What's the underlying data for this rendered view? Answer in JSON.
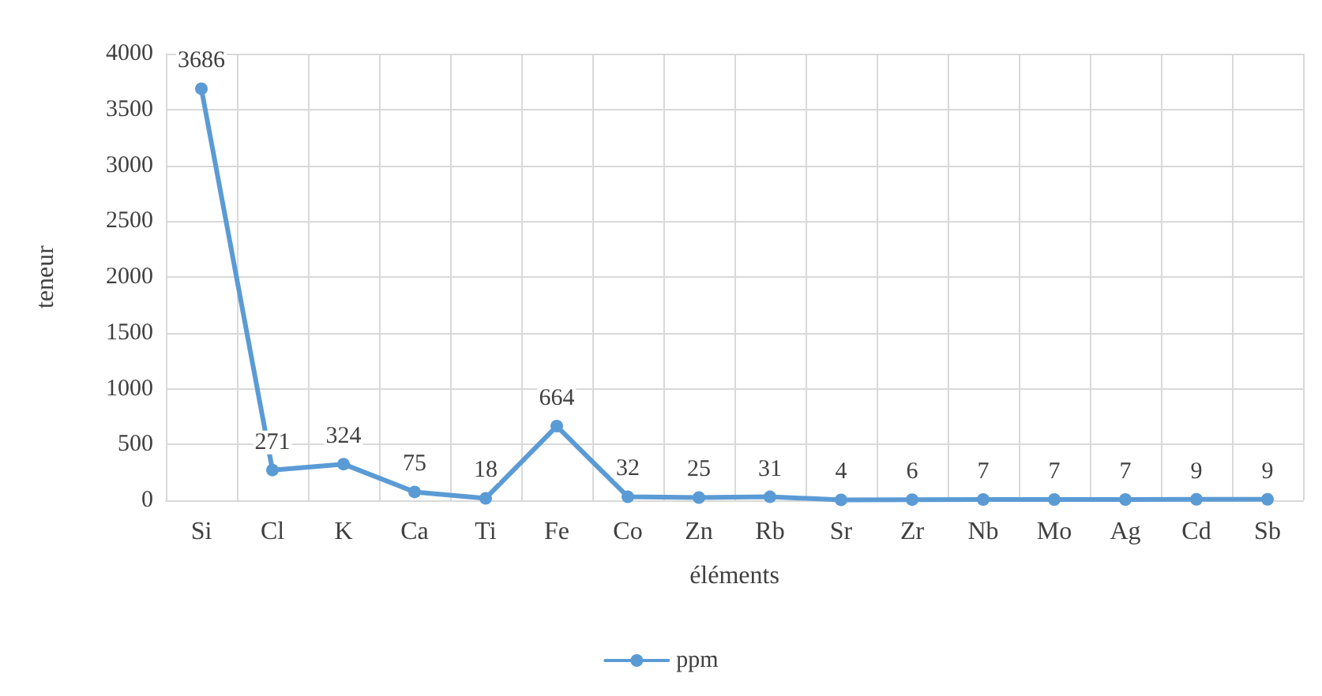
{
  "chart_data": {
    "type": "line",
    "xlabel": "éléments",
    "ylabel": "teneur",
    "categories": [
      "Si",
      "Cl",
      "K",
      "Ca",
      "Ti",
      "Fe",
      "Co",
      "Zn",
      "Rb",
      "Sr",
      "Zr",
      "Nb",
      "Mo",
      "Ag",
      "Cd",
      "Sb"
    ],
    "series": [
      {
        "name": "ppm",
        "color": "#5b9bd5",
        "values": [
          3686,
          271,
          324,
          75,
          18,
          664,
          32,
          25,
          31,
          4,
          6,
          7,
          7,
          7,
          9,
          9
        ]
      }
    ],
    "ylim": [
      0,
      4000
    ],
    "yticks": [
      0,
      500,
      1000,
      1500,
      2000,
      2500,
      3000,
      3500,
      4000
    ],
    "grid": true,
    "legend": "bottom",
    "marker": "circle",
    "line_style": "solid",
    "data_labels": true
  }
}
